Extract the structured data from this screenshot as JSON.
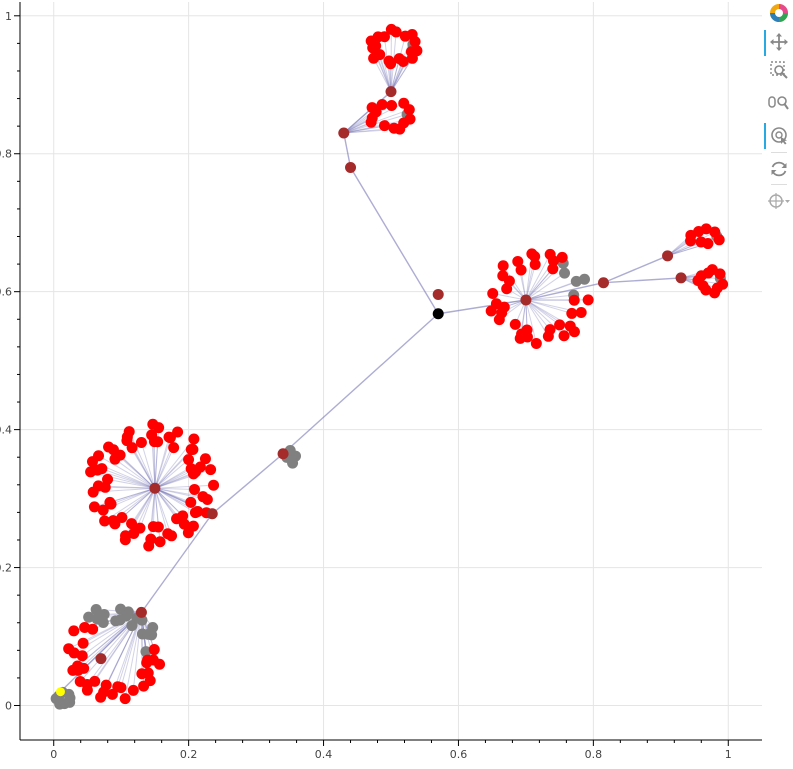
{
  "chart_data": {
    "type": "scatter",
    "subtype": "network-graph",
    "title": "",
    "xlabel": "",
    "ylabel": "",
    "xlim": [
      -0.05,
      1.05
    ],
    "ylim": [
      -0.05,
      1.02
    ],
    "x_ticks": [
      0,
      0.2,
      0.4,
      0.6,
      0.8,
      1
    ],
    "y_ticks": [
      0,
      0.2,
      0.4,
      0.6,
      0.8,
      1
    ],
    "x_tick_labels": [
      "0",
      "0.2",
      "0.4",
      "0.6",
      "0.8",
      "1"
    ],
    "y_tick_labels": [
      "0",
      "0.2",
      "0.4",
      "0.6",
      "0.8",
      "1"
    ],
    "grid": true,
    "colors": {
      "root": "#000000",
      "hub": "#a52a2a",
      "leaf": "#ff0000",
      "gray_node": "#808080",
      "highlight": "#ffff00",
      "edge": "#6a6ab0"
    },
    "main_edges": [
      [
        0.57,
        0.568,
        0.44,
        0.78
      ],
      [
        0.44,
        0.78,
        0.43,
        0.83
      ],
      [
        0.43,
        0.83,
        0.5,
        0.89
      ],
      [
        0.57,
        0.568,
        0.7,
        0.588
      ],
      [
        0.7,
        0.588,
        0.815,
        0.613
      ],
      [
        0.815,
        0.613,
        0.91,
        0.652
      ],
      [
        0.815,
        0.613,
        0.93,
        0.62
      ],
      [
        0.57,
        0.568,
        0.34,
        0.365
      ],
      [
        0.34,
        0.365,
        0.235,
        0.278
      ],
      [
        0.235,
        0.278,
        0.15,
        0.315
      ],
      [
        0.235,
        0.278,
        0.13,
        0.135
      ],
      [
        0.13,
        0.135,
        0.01,
        0.02
      ]
    ],
    "hubs": [
      [
        0.57,
        0.568,
        "root"
      ],
      [
        0.44,
        0.78,
        "hub"
      ],
      [
        0.43,
        0.83,
        "hub"
      ],
      [
        0.5,
        0.89,
        "hub"
      ],
      [
        0.57,
        0.596,
        "hub"
      ],
      [
        0.7,
        0.588,
        "hub"
      ],
      [
        0.815,
        0.613,
        "hub"
      ],
      [
        0.91,
        0.652,
        "hub"
      ],
      [
        0.93,
        0.62,
        "hub"
      ],
      [
        0.34,
        0.365,
        "hub"
      ],
      [
        0.235,
        0.278,
        "hub"
      ],
      [
        0.15,
        0.315,
        "hub"
      ],
      [
        0.13,
        0.135,
        "hub"
      ],
      [
        0.07,
        0.068,
        "hub"
      ],
      [
        0.01,
        0.02,
        "highlight"
      ]
    ],
    "clusters": [
      {
        "name": "top-upper",
        "hub": [
          0.5,
          0.89
        ],
        "count": 20,
        "gray": 1,
        "cx": 0.505,
        "cy": 0.955,
        "rx": 0.04,
        "ry": 0.026
      },
      {
        "name": "top-lower",
        "hub": [
          0.43,
          0.83
        ],
        "count": 14,
        "gray": 1,
        "cx": 0.5,
        "cy": 0.855,
        "rx": 0.035,
        "ry": 0.022
      },
      {
        "name": "right-big",
        "hub": [
          0.7,
          0.588
        ],
        "count": 40,
        "gray": 5,
        "cx": 0.72,
        "cy": 0.59,
        "rx": 0.075,
        "ry": 0.07
      },
      {
        "name": "far-right-upper",
        "hub": [
          0.91,
          0.652
        ],
        "count": 9,
        "gray": 1,
        "cx": 0.965,
        "cy": 0.68,
        "rx": 0.025,
        "ry": 0.012
      },
      {
        "name": "far-right-lower",
        "hub": [
          0.93,
          0.62
        ],
        "count": 11,
        "gray": 1,
        "cx": 0.975,
        "cy": 0.615,
        "rx": 0.02,
        "ry": 0.018
      },
      {
        "name": "mid-gray",
        "hub": [
          0.34,
          0.365
        ],
        "count": 4,
        "gray": 4,
        "cx": 0.353,
        "cy": 0.36,
        "rx": 0.008,
        "ry": 0.012
      },
      {
        "name": "left-big",
        "hub": [
          0.15,
          0.315
        ],
        "count": 70,
        "gray": 0,
        "cx": 0.145,
        "cy": 0.32,
        "rx": 0.095,
        "ry": 0.09
      },
      {
        "name": "bottom-left",
        "hub": [
          0.13,
          0.135
        ],
        "count": 50,
        "gray": 18,
        "cx": 0.09,
        "cy": 0.075,
        "rx": 0.07,
        "ry": 0.07
      },
      {
        "name": "corner-gray",
        "hub": [
          0.01,
          0.02
        ],
        "count": 8,
        "gray": 8,
        "cx": 0.015,
        "cy": 0.01,
        "rx": 0.013,
        "ry": 0.01
      }
    ]
  },
  "toolbar": {
    "tools": [
      {
        "name": "bokeh-logo",
        "icon": "bokeh-logo-icon",
        "active": false
      },
      {
        "name": "pan-tool",
        "icon": "pan-icon",
        "active": true
      },
      {
        "name": "box-zoom-tool",
        "icon": "box-zoom-icon",
        "active": false
      },
      {
        "name": "wheel-zoom-tool",
        "icon": "wheel-zoom-icon",
        "active": false
      },
      {
        "name": "tap-tool",
        "icon": "tap-icon",
        "active": true
      },
      {
        "name": "reset-tool",
        "icon": "reset-icon",
        "active": false
      },
      {
        "name": "hover-tool",
        "icon": "hover-icon",
        "active": false
      }
    ]
  }
}
